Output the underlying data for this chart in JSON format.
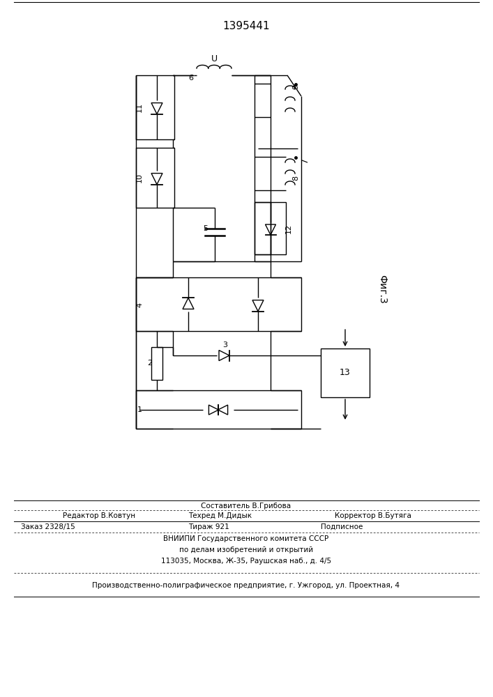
{
  "title": "1395441",
  "fig_label": "Фиг.3",
  "bg": "#ffffff",
  "lc": "#000000",
  "lw": 1.0,
  "footer": {
    "line1_center": "Составитель В.Грибова",
    "line2_left": "Редактор В.Ковтун",
    "line2_center": "Техред М.Дидык",
    "line2_right": "Корректор В.Бутяга",
    "line3_left": "Заказ 2328/15",
    "line3_center": "Тираж 921",
    "line3_right": "Подписное",
    "line4": "ВНИИПИ Государственного комитета СССР",
    "line5": "по делам изобретений и открытий",
    "line6": "113035, Москва, Ж-35, Раушская наб., д. 4/5",
    "line7": "Производственно-полиграфическое предприятие, г. Ужгород, ул. Проектная, 4"
  }
}
